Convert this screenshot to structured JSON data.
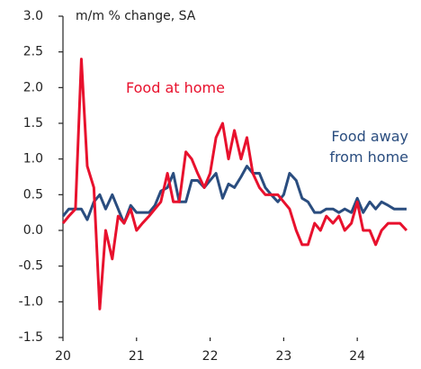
{
  "chart_data": {
    "type": "line",
    "title": "m/m % change, SA",
    "x": [
      2020.0,
      2020.08,
      2020.17,
      2020.25,
      2020.33,
      2020.42,
      2020.5,
      2020.58,
      2020.67,
      2020.75,
      2020.83,
      2020.92,
      2021.0,
      2021.08,
      2021.17,
      2021.25,
      2021.33,
      2021.42,
      2021.5,
      2021.58,
      2021.67,
      2021.75,
      2021.83,
      2021.92,
      2022.0,
      2022.08,
      2022.17,
      2022.25,
      2022.33,
      2022.42,
      2022.5,
      2022.58,
      2022.67,
      2022.75,
      2022.83,
      2022.92,
      2023.0,
      2023.08,
      2023.17,
      2023.25,
      2023.33,
      2023.42,
      2023.5,
      2023.58,
      2023.67,
      2023.75,
      2023.83,
      2023.92,
      2024.0,
      2024.08,
      2024.17,
      2024.25,
      2024.33,
      2024.42,
      2024.5,
      2024.58,
      2024.67
    ],
    "series": [
      {
        "name": "Food at home",
        "color": "#e8112d",
        "values": [
          0.1,
          0.2,
          0.3,
          2.4,
          0.9,
          0.6,
          -1.1,
          0.0,
          -0.4,
          0.2,
          0.1,
          0.3,
          0.0,
          0.1,
          0.2,
          0.3,
          0.4,
          0.8,
          0.4,
          0.4,
          1.1,
          1.0,
          0.8,
          0.6,
          0.8,
          1.3,
          1.5,
          1.0,
          1.4,
          1.0,
          1.3,
          0.8,
          0.6,
          0.5,
          0.5,
          0.5,
          0.4,
          0.3,
          0.0,
          -0.2,
          -0.2,
          0.1,
          0.0,
          0.2,
          0.1,
          0.2,
          0.0,
          0.1,
          0.4,
          0.0,
          0.0,
          -0.2,
          0.0,
          0.1,
          0.1,
          0.1,
          0.0
        ]
      },
      {
        "name": "Food away from home",
        "color": "#2a4d7f",
        "values": [
          0.2,
          0.3,
          0.3,
          0.3,
          0.15,
          0.4,
          0.5,
          0.3,
          0.5,
          0.3,
          0.1,
          0.35,
          0.25,
          0.25,
          0.25,
          0.35,
          0.55,
          0.6,
          0.8,
          0.4,
          0.4,
          0.7,
          0.7,
          0.6,
          0.7,
          0.8,
          0.45,
          0.65,
          0.6,
          0.75,
          0.9,
          0.8,
          0.8,
          0.6,
          0.5,
          0.4,
          0.5,
          0.8,
          0.7,
          0.45,
          0.4,
          0.25,
          0.25,
          0.3,
          0.3,
          0.25,
          0.3,
          0.25,
          0.45,
          0.25,
          0.4,
          0.3,
          0.4,
          0.35,
          0.3,
          0.3,
          0.3
        ]
      }
    ],
    "xlim": [
      2020,
      2024.75
    ],
    "xticks": [
      {
        "value": 2020,
        "label": "20"
      },
      {
        "value": 2021,
        "label": "21"
      },
      {
        "value": 2022,
        "label": "22"
      },
      {
        "value": 2023,
        "label": "23"
      },
      {
        "value": 2024,
        "label": "24"
      }
    ],
    "ylim": [
      -1.5,
      3
    ],
    "yticks": [
      {
        "value": 3,
        "label": "3.0"
      },
      2.5,
      {
        "value": 2,
        "label": "2.0"
      },
      1.5,
      {
        "value": 1,
        "label": "1.0"
      },
      0.5,
      {
        "value": 0,
        "label": "0.0"
      },
      -0.5,
      {
        "value": -1,
        "label": "-1.0"
      },
      -1.5
    ],
    "grid": false
  }
}
